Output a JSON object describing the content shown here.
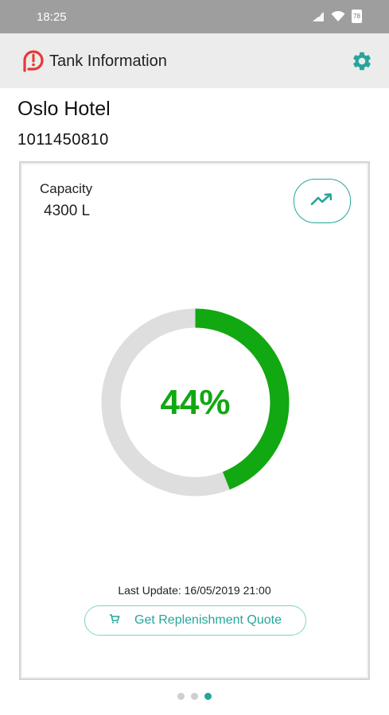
{
  "status_bar": {
    "time": "18:25",
    "battery": "78"
  },
  "app_bar": {
    "title": "Tank Information",
    "accent": "#26a69a",
    "logo_color": "#e53935"
  },
  "site": {
    "name": "Oslo Hotel",
    "id": "1011450810"
  },
  "tank": {
    "capacity_label": "Capacity",
    "capacity_value": "4300 L",
    "fill_percent": 44,
    "fill_label": "44%",
    "fill_color": "#11a811",
    "track_color": "#dedede",
    "last_update": "Last Update: 16/05/2019 21:00",
    "quote_button": "Get Replenishment Quote"
  },
  "pager": {
    "count": 3,
    "active_index": 2
  }
}
